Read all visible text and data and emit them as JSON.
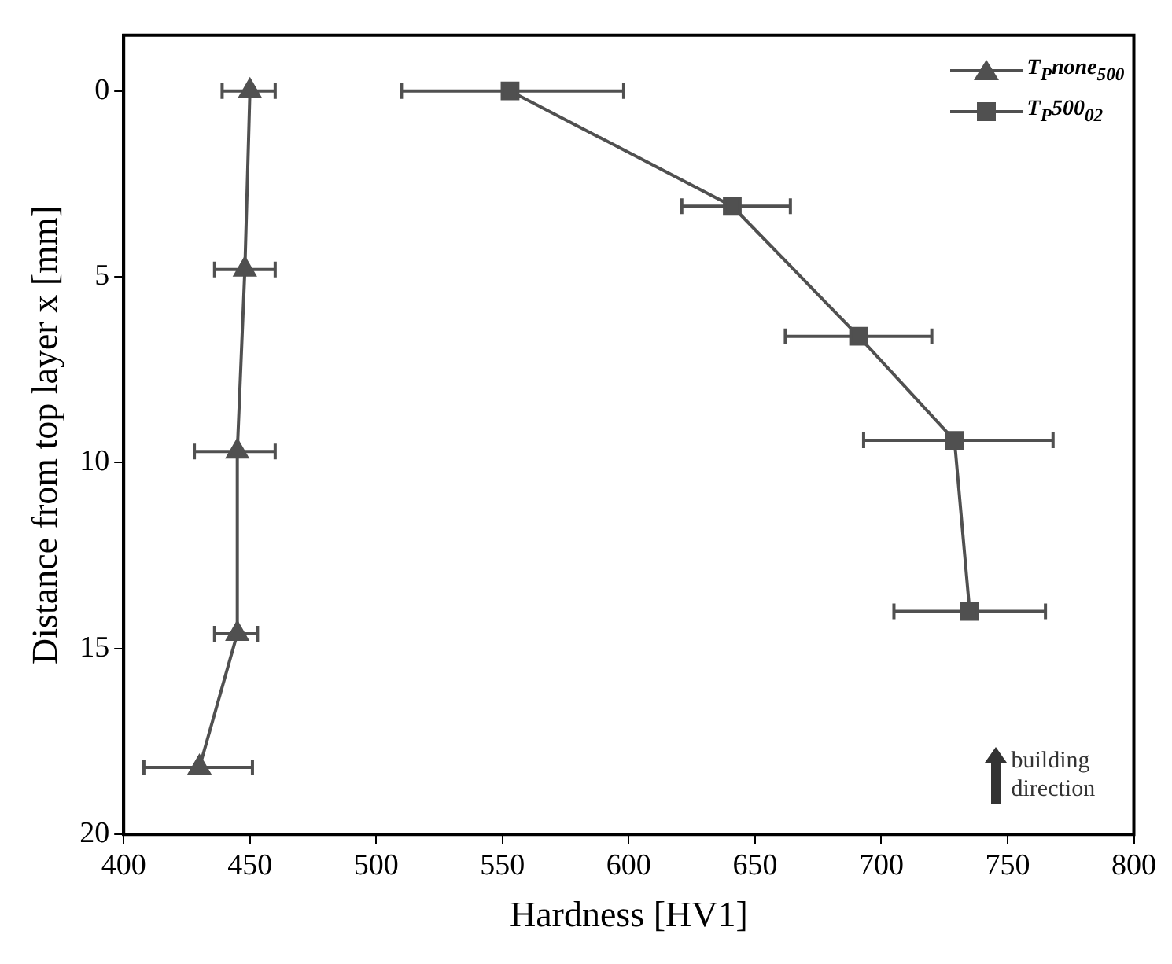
{
  "chart_data": {
    "type": "line",
    "xlabel": "Hardness [HV1]",
    "ylabel": "Distance from top layer x [mm]",
    "xlim": [
      400,
      800
    ],
    "xticks": [
      400,
      450,
      500,
      550,
      600,
      650,
      700,
      750,
      800
    ],
    "ylim": [
      20,
      -1.5
    ],
    "yticks": [
      0,
      5,
      10,
      15,
      20
    ],
    "grid": false,
    "legend": "top right",
    "annotations": [
      "building direction"
    ],
    "series": [
      {
        "name": "T$_{P}$none$_{500}$",
        "color": "#505050",
        "marker": "triangle",
        "x": [
          450,
          448,
          445,
          445,
          430
        ],
        "values": [
          0,
          4.8,
          9.7,
          14.6,
          18.2
        ],
        "xerrors": [
          [
            439,
            460
          ],
          [
            436,
            460
          ],
          [
            428,
            460
          ],
          [
            436,
            453
          ],
          [
            408,
            451
          ]
        ]
      },
      {
        "name": "T$_{P}$500$_{02}$",
        "color": "#505050",
        "marker": "square",
        "x": [
          553,
          641,
          691,
          729,
          735
        ],
        "values": [
          0,
          3.1,
          6.6,
          9.4,
          14
        ],
        "xerrors": [
          [
            510,
            598
          ],
          [
            621,
            664
          ],
          [
            662,
            720
          ],
          [
            693,
            768
          ],
          [
            705,
            765
          ]
        ]
      }
    ]
  }
}
